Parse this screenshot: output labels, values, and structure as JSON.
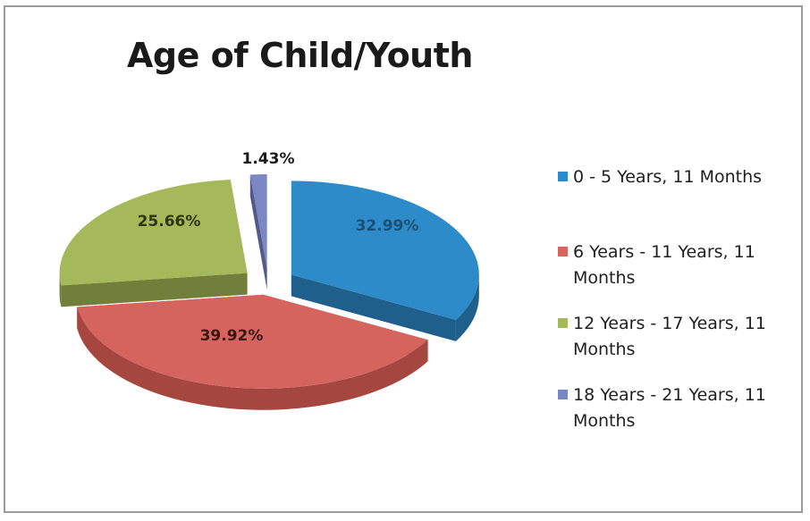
{
  "chart_data": {
    "type": "pie",
    "title": "Age of Child/Youth",
    "slices": [
      {
        "label": "0 - 5 Years, 11 Months",
        "value": 32.99,
        "value_label": "32.99%",
        "color": "#2e8bc9",
        "dark": "#1f5f8c"
      },
      {
        "label": "6 Years - 11 Years, 11 Months",
        "value": 39.92,
        "value_label": "39.92%",
        "color": "#d5645e",
        "dark": "#a5463f"
      },
      {
        "label": "12 Years - 17 Years, 11 Months",
        "value": 25.66,
        "value_label": "25.66%",
        "color": "#a5b85a",
        "dark": "#727f3a"
      },
      {
        "label": "18 Years - 21 Years, 11 Months",
        "value": 1.43,
        "value_label": "1.43%",
        "color": "#7b87c2",
        "dark": "#515a8a"
      }
    ],
    "legend_position": "right",
    "style": "3d-exploded"
  }
}
